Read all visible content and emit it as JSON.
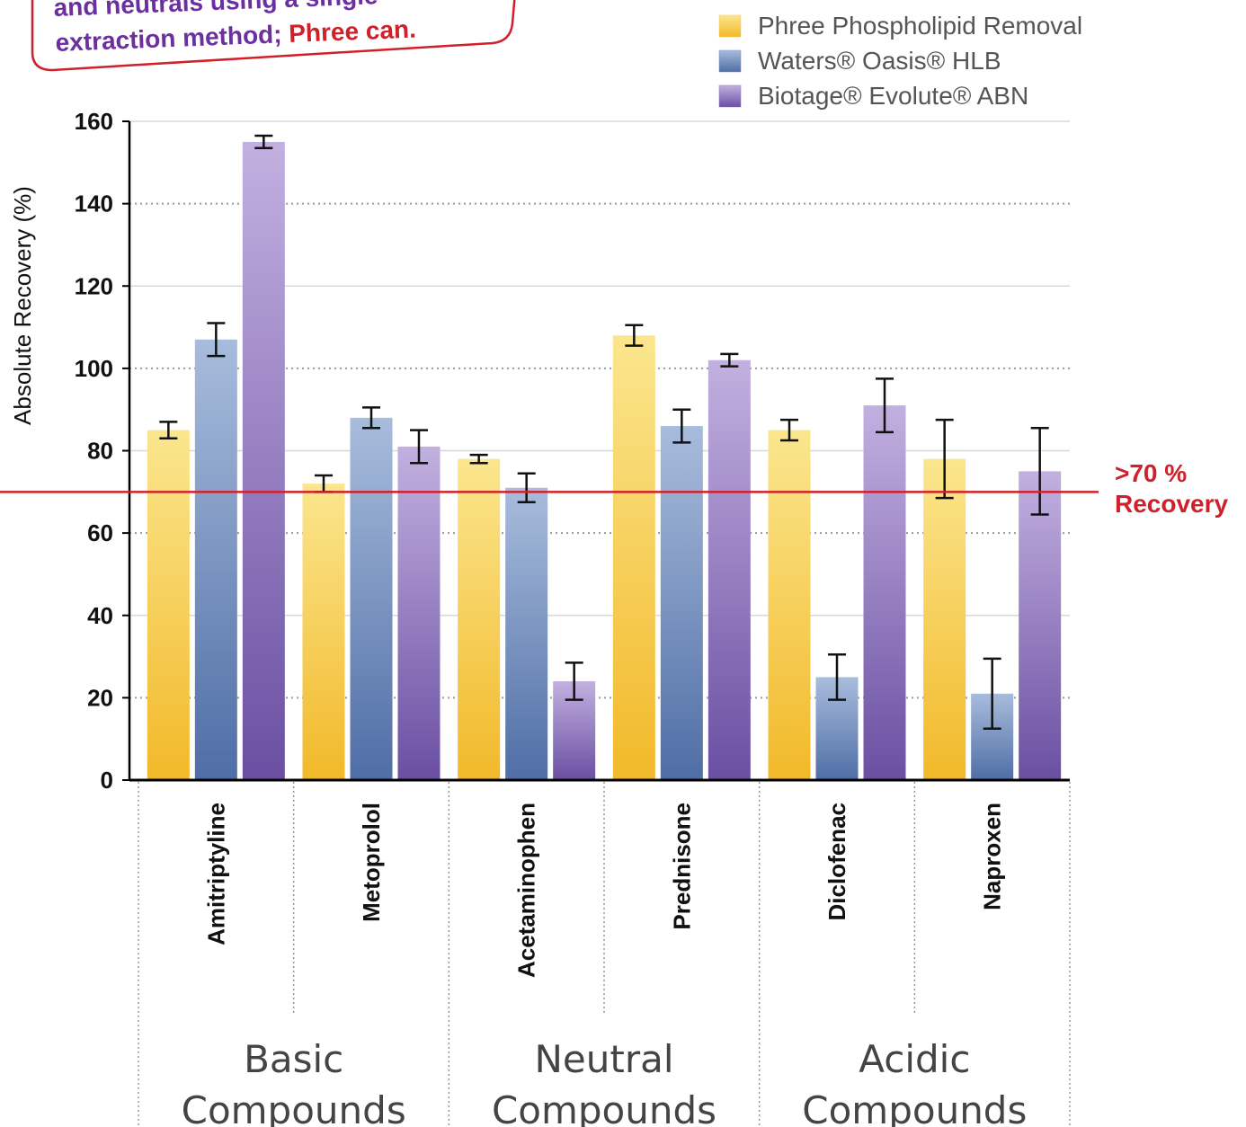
{
  "callout": {
    "line1": "and neutrals using a single",
    "line2_a": "extraction method; ",
    "line2_b": "Phree can."
  },
  "colors": {
    "phree": "#f5c842",
    "waters": "#7a95c4",
    "biotage": "#9278c0",
    "threshold": "#d0202a",
    "callout_text": "#6b2fa0"
  },
  "chart_data": {
    "type": "bar",
    "title": "",
    "xlabel": "",
    "ylabel": "Absolute Recovery (%)",
    "ylim": [
      0,
      160
    ],
    "yticks": [
      0,
      20,
      40,
      60,
      80,
      100,
      120,
      140,
      160
    ],
    "grid": true,
    "legend_position": "top-right",
    "categories": [
      "Amitriptyline",
      "Metoprolol",
      "Acetaminophen",
      "Prednisone",
      "Diclofenac",
      "Naproxen"
    ],
    "groups": [
      {
        "label_line1": "Basic",
        "label_line2": "Compounds",
        "categories": [
          "Amitriptyline",
          "Metoprolol"
        ]
      },
      {
        "label_line1": "Neutral",
        "label_line2": "Compounds",
        "categories": [
          "Acetaminophen",
          "Prednisone"
        ]
      },
      {
        "label_line1": "Acidic",
        "label_line2": "Compounds",
        "categories": [
          "Diclofenac",
          "Naproxen"
        ]
      }
    ],
    "series": [
      {
        "name": "Phree Phospholipid Removal",
        "values": [
          85,
          72,
          78,
          108,
          85,
          78
        ],
        "errors": [
          2,
          2,
          1,
          2.5,
          2.5,
          9.5
        ]
      },
      {
        "name": "Waters® Oasis® HLB",
        "values": [
          107,
          88,
          71,
          86,
          25,
          21
        ],
        "errors": [
          4,
          2.5,
          3.5,
          4,
          5.5,
          8.5
        ]
      },
      {
        "name": "Biotage® Evolute® ABN",
        "values": [
          155,
          81,
          24,
          102,
          91,
          75
        ],
        "errors": [
          1.5,
          4,
          4.5,
          1.5,
          6.5,
          10.5
        ]
      }
    ],
    "threshold": {
      "value": 70,
      "label_line1": ">70 %",
      "label_line2": "Recovery"
    }
  }
}
